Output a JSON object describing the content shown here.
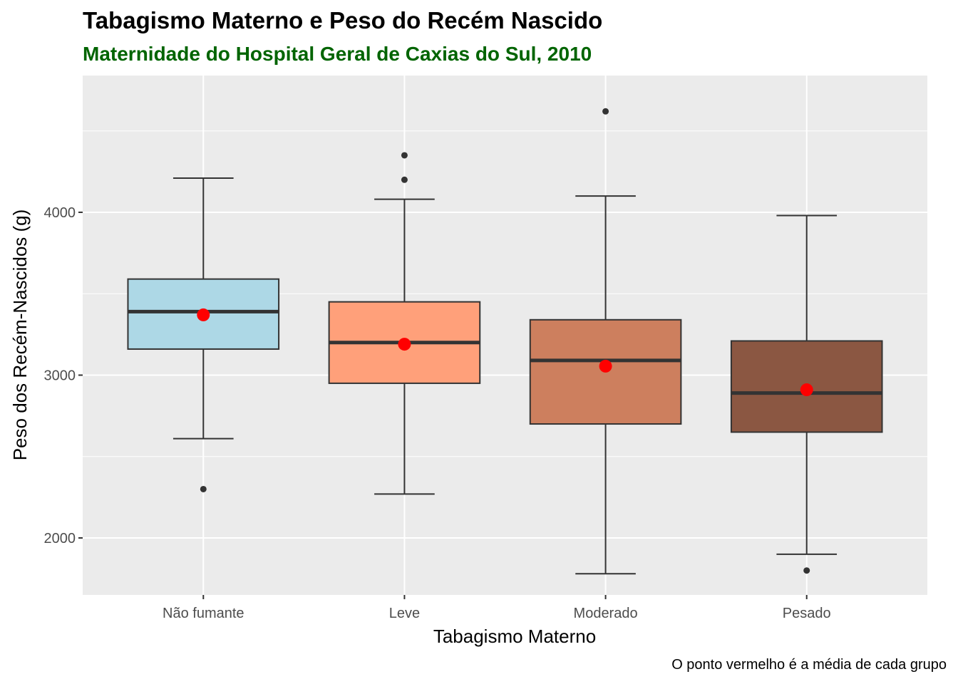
{
  "chart_data": {
    "type": "boxplot",
    "title": "Tabagismo Materno e Peso do Recém Nascido",
    "subtitle": "Maternidade do Hospital Geral de Caxias do Sul, 2010",
    "caption": "O ponto vermelho é a média de cada grupo",
    "xlabel": "Tabagismo Materno",
    "ylabel": "Peso dos Recém-Nascidos (g)",
    "ylim": [
      1650,
      4840
    ],
    "yticks": [
      2000,
      3000,
      4000
    ],
    "grid": true,
    "legend": "none",
    "mean_color": "#ff0000",
    "groups": [
      {
        "name": "Não fumante",
        "fill": "#add8e6",
        "whisker_low": 2610,
        "q1": 3160,
        "median": 3390,
        "q3": 3590,
        "whisker_high": 4210,
        "mean": 3370,
        "outliers": [
          2300
        ]
      },
      {
        "name": "Leve",
        "fill": "#ffa07a",
        "whisker_low": 2270,
        "q1": 2950,
        "median": 3200,
        "q3": 3450,
        "whisker_high": 4080,
        "mean": 3190,
        "outliers": [
          4200,
          4350
        ]
      },
      {
        "name": "Moderado",
        "fill": "#cd7f5e",
        "whisker_low": 1780,
        "q1": 2700,
        "median": 3090,
        "q3": 3340,
        "whisker_high": 4100,
        "mean": 3055,
        "outliers": [
          4620
        ]
      },
      {
        "name": "Pesado",
        "fill": "#8b5742",
        "whisker_low": 1900,
        "q1": 2650,
        "median": 2890,
        "q3": 3210,
        "whisker_high": 3980,
        "mean": 2910,
        "outliers": [
          1800
        ]
      }
    ]
  }
}
